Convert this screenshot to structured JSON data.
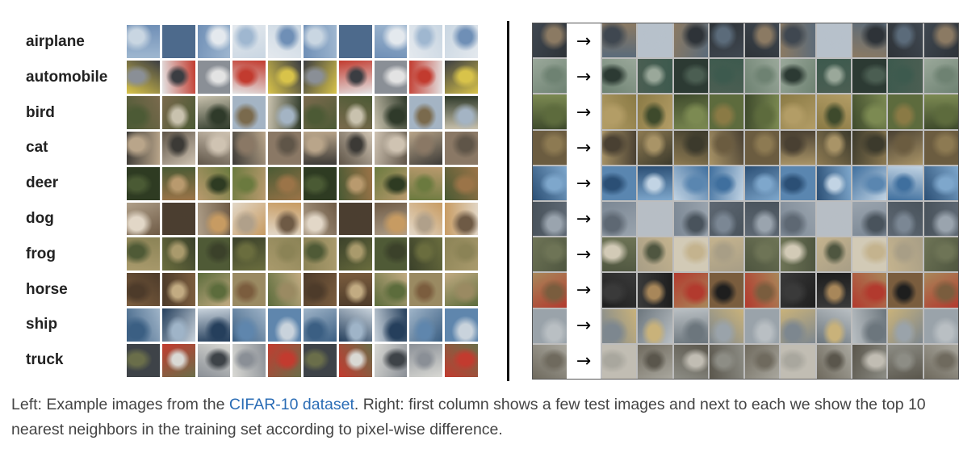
{
  "left_panel": {
    "classes": [
      "airplane",
      "automobile",
      "bird",
      "cat",
      "deer",
      "dog",
      "frog",
      "horse",
      "ship",
      "truck"
    ],
    "row_palettes": [
      [
        "#9fb7d0",
        "#6f8fb6",
        "#c9d6e2",
        "#4d6a8c",
        "#e4e9ee"
      ],
      [
        "#c23b2f",
        "#d8c34a",
        "#8a8f96",
        "#3b3d42",
        "#e3e3e3"
      ],
      [
        "#7a6a4d",
        "#a4b4c4",
        "#4c5a35",
        "#c9c2ae",
        "#2f3a2a"
      ],
      [
        "#8a7865",
        "#5f5548",
        "#b9a58a",
        "#3c3a36",
        "#cfc3b2"
      ],
      [
        "#6b7a3f",
        "#9b7448",
        "#4a5a34",
        "#b99a6e",
        "#2e3b22"
      ],
      [
        "#b0a08a",
        "#6e5a45",
        "#e2d7c7",
        "#4b3e30",
        "#c79b62"
      ],
      [
        "#6a6d3e",
        "#8b8356",
        "#4f5a36",
        "#a99a6c",
        "#3b412a"
      ],
      [
        "#7b5d3e",
        "#9a8a62",
        "#4d3b2a",
        "#c2ab82",
        "#5c6c3c"
      ],
      [
        "#5f86ad",
        "#c9d3dc",
        "#3b5f83",
        "#9fb4c8",
        "#253f5c"
      ],
      [
        "#8a8f96",
        "#c23b2f",
        "#6a6e4a",
        "#d9d9d4",
        "#3e4348"
      ]
    ]
  },
  "right_panel": {
    "arrow_glyph": "→",
    "row_palettes": [
      [
        "#5b6b7a",
        "#8b7a63",
        "#3f4750",
        "#b7c1cb",
        "#2e3338"
      ],
      [
        "#3d5a4e",
        "#6e8272",
        "#2c3a33",
        "#9aa89a",
        "#4b5e52"
      ],
      [
        "#8a7a45",
        "#5d6b3d",
        "#b39d66",
        "#3e4a2c",
        "#7c8a52"
      ],
      [
        "#6b5c40",
        "#8d7a52",
        "#494032",
        "#a99467",
        "#3c3a2c"
      ],
      [
        "#3f6f9e",
        "#7ea7cc",
        "#2b4f75",
        "#c2d4e4",
        "#5a86b0"
      ],
      [
        "#7b8794",
        "#9aa4ae",
        "#5e6873",
        "#b7bec5",
        "#49535c"
      ],
      [
        "#a89e86",
        "#6e7456",
        "#d2cab6",
        "#4f5640",
        "#c4b38e"
      ],
      [
        "#1e1e1e",
        "#7a5d3e",
        "#3a3a3a",
        "#a8875a",
        "#b23a2e"
      ],
      [
        "#9aa3aa",
        "#b9bfc3",
        "#7d878f",
        "#c9b27a",
        "#6c767d"
      ],
      [
        "#8d8d85",
        "#6f6a5e",
        "#a9a79e",
        "#5a564c",
        "#c1bdb3"
      ]
    ]
  },
  "caption": {
    "prefix": "Left: Example images from the ",
    "link_text": "CIFAR-10 dataset",
    "suffix": ". Right: first column shows a few test images and next to each we show the top 10 nearest neighbors in the training set according to pixel-wise difference."
  }
}
